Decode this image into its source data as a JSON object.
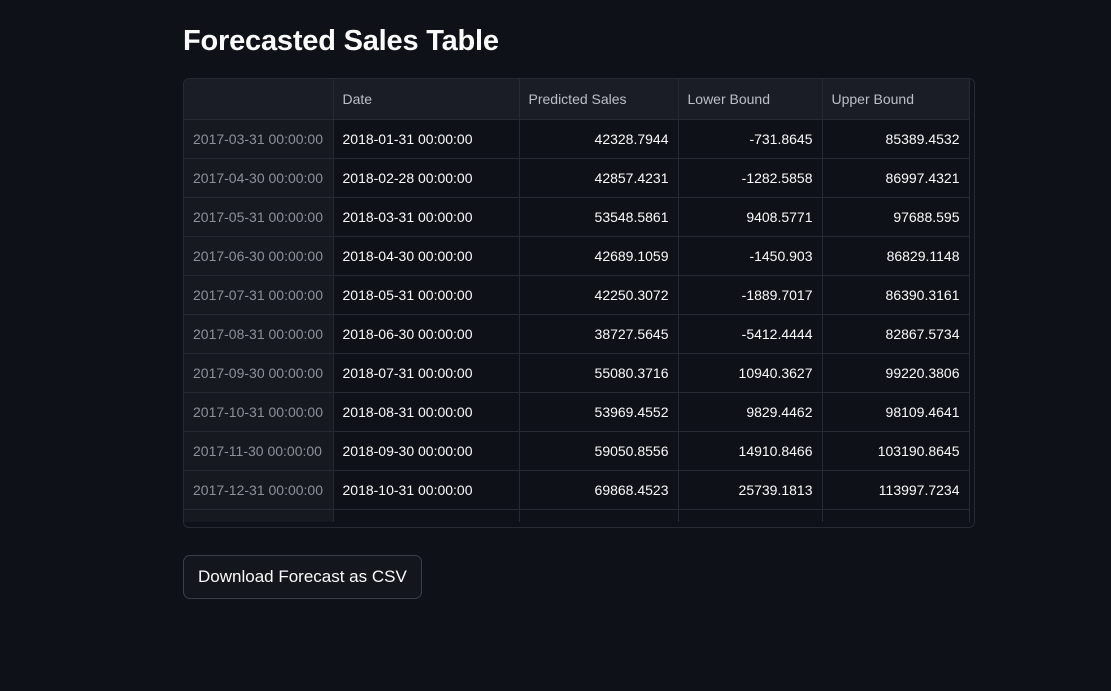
{
  "title": "Forecasted Sales Table",
  "table": {
    "columns": [
      "",
      "Date",
      "Predicted Sales",
      "Lower Bound",
      "Upper Bound"
    ],
    "rows": [
      {
        "index": "2017-03-31 00:00:00",
        "date": "2018-01-31 00:00:00",
        "predicted": "42328.7944",
        "lower": "-731.8645",
        "upper": "85389.4532"
      },
      {
        "index": "2017-04-30 00:00:00",
        "date": "2018-02-28 00:00:00",
        "predicted": "42857.4231",
        "lower": "-1282.5858",
        "upper": "86997.4321"
      },
      {
        "index": "2017-05-31 00:00:00",
        "date": "2018-03-31 00:00:00",
        "predicted": "53548.5861",
        "lower": "9408.5771",
        "upper": "97688.595"
      },
      {
        "index": "2017-06-30 00:00:00",
        "date": "2018-04-30 00:00:00",
        "predicted": "42689.1059",
        "lower": "-1450.903",
        "upper": "86829.1148"
      },
      {
        "index": "2017-07-31 00:00:00",
        "date": "2018-05-31 00:00:00",
        "predicted": "42250.3072",
        "lower": "-1889.7017",
        "upper": "86390.3161"
      },
      {
        "index": "2017-08-31 00:00:00",
        "date": "2018-06-30 00:00:00",
        "predicted": "38727.5645",
        "lower": "-5412.4444",
        "upper": "82867.5734"
      },
      {
        "index": "2017-09-30 00:00:00",
        "date": "2018-07-31 00:00:00",
        "predicted": "55080.3716",
        "lower": "10940.3627",
        "upper": "99220.3806"
      },
      {
        "index": "2017-10-31 00:00:00",
        "date": "2018-08-31 00:00:00",
        "predicted": "53969.4552",
        "lower": "9829.4462",
        "upper": "98109.4641"
      },
      {
        "index": "2017-11-30 00:00:00",
        "date": "2018-09-30 00:00:00",
        "predicted": "59050.8556",
        "lower": "14910.8466",
        "upper": "103190.8645"
      },
      {
        "index": "2017-12-31 00:00:00",
        "date": "2018-10-31 00:00:00",
        "predicted": "69868.4523",
        "lower": "25739.1813",
        "upper": "113997.7234"
      }
    ]
  },
  "download_button": {
    "label": "Download Forecast as CSV"
  }
}
